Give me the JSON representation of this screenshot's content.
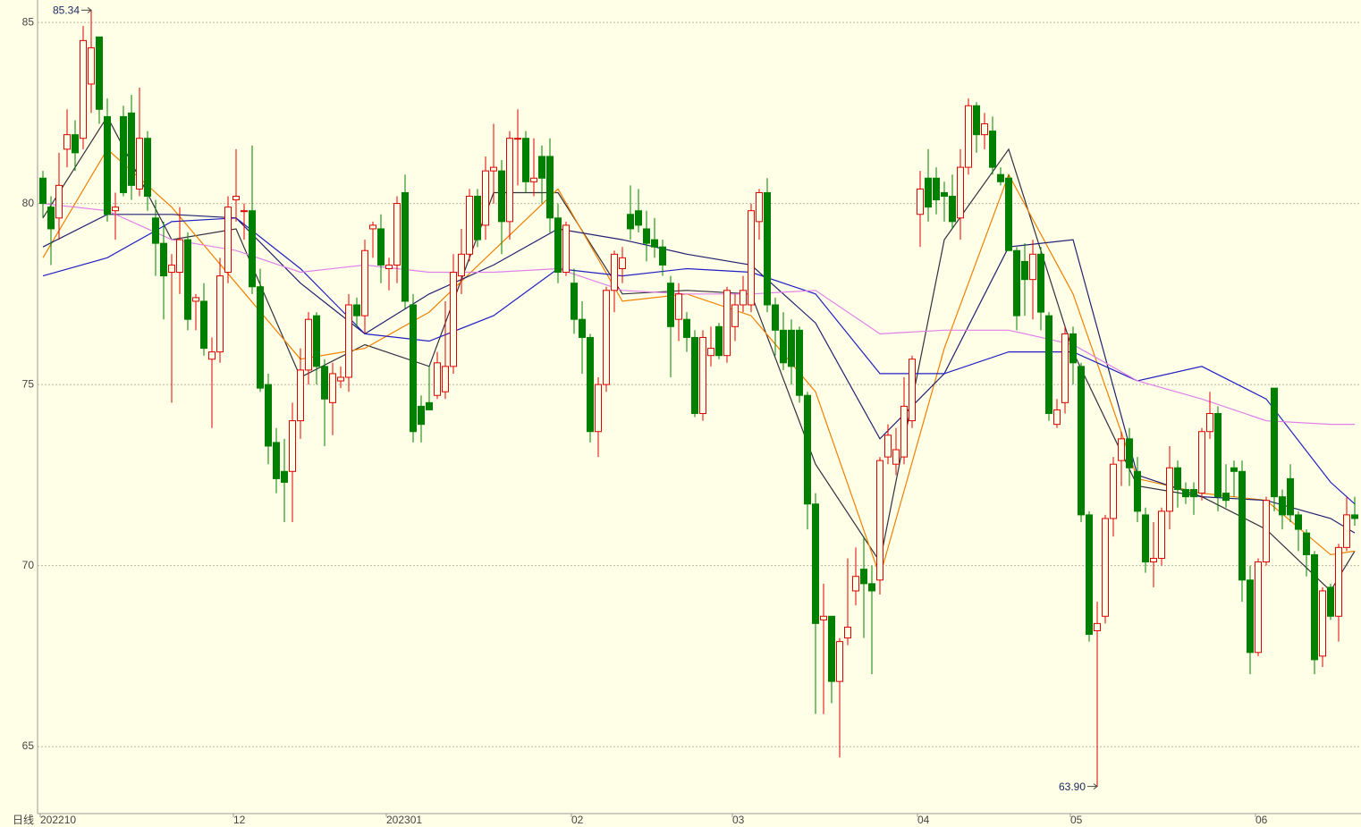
{
  "chart_data": {
    "type": "candlestick",
    "period_label": "日线",
    "ylim": [
      63.15,
      85.62
    ],
    "yticks": [
      65,
      70,
      75,
      80,
      85
    ],
    "grid": true,
    "xticks": [
      {
        "value": 0,
        "label": "202210"
      },
      {
        "value": 24,
        "label": "12"
      },
      {
        "value": 43,
        "label": "202301"
      },
      {
        "value": 66,
        "label": "02"
      },
      {
        "value": 86,
        "label": "03"
      },
      {
        "value": 109,
        "label": "04"
      },
      {
        "value": 128,
        "label": "05"
      },
      {
        "value": 151,
        "label": "06"
      }
    ],
    "up_color": "#e00000",
    "down_color": "#008000",
    "background": "#ffffe8",
    "max_label": "85.34",
    "min_label": "63.90",
    "candles": [
      [
        80.7,
        80.9,
        79.6,
        80.0
      ],
      [
        79.9,
        80.2,
        78.3,
        79.3
      ],
      [
        79.6,
        81.4,
        79.0,
        80.5
      ],
      [
        81.5,
        82.6,
        81.0,
        81.9
      ],
      [
        81.9,
        82.3,
        80.9,
        81.4
      ],
      [
        81.8,
        84.9,
        81.5,
        84.5
      ],
      [
        83.3,
        85.34,
        82.5,
        84.3
      ],
      [
        84.6,
        84.6,
        82.2,
        82.6
      ],
      [
        82.4,
        82.9,
        79.5,
        79.7
      ],
      [
        79.8,
        80.3,
        79.0,
        79.9
      ],
      [
        82.4,
        82.7,
        80.2,
        80.3
      ],
      [
        82.5,
        83.0,
        80.1,
        80.5
      ],
      [
        80.4,
        83.2,
        80.2,
        81.8
      ],
      [
        81.8,
        82.0,
        79.8,
        80.2
      ],
      [
        79.6,
        80.1,
        78.0,
        78.9
      ],
      [
        78.9,
        79.5,
        76.8,
        78.0
      ],
      [
        78.1,
        78.6,
        74.5,
        78.3
      ],
      [
        78.1,
        79.9,
        77.5,
        79.0
      ],
      [
        79.0,
        79.2,
        76.5,
        76.8
      ],
      [
        77.3,
        77.5,
        76.5,
        77.4
      ],
      [
        77.3,
        77.8,
        75.8,
        76.0
      ],
      [
        75.7,
        76.3,
        73.8,
        75.9
      ],
      [
        75.9,
        78.5,
        75.6,
        78.0
      ],
      [
        78.1,
        80.2,
        77.8,
        79.9
      ],
      [
        80.1,
        81.5,
        79.5,
        80.2
      ],
      [
        79.8,
        80.0,
        79.0,
        79.8
      ],
      [
        79.8,
        81.6,
        77.5,
        77.7
      ],
      [
        77.7,
        78.2,
        74.8,
        74.9
      ],
      [
        75.0,
        75.3,
        72.8,
        73.3
      ],
      [
        73.4,
        73.8,
        72.0,
        72.4
      ],
      [
        72.6,
        73.5,
        71.2,
        72.3
      ],
      [
        72.6,
        74.5,
        71.2,
        74.0
      ],
      [
        74.0,
        76.0,
        73.5,
        75.4
      ],
      [
        75.4,
        77.0,
        75.0,
        76.8
      ],
      [
        76.9,
        77.0,
        75.0,
        75.5
      ],
      [
        75.5,
        75.7,
        73.3,
        74.6
      ],
      [
        74.5,
        75.6,
        73.6,
        75.3
      ],
      [
        75.1,
        75.5,
        74.9,
        75.2
      ],
      [
        75.2,
        77.5,
        74.8,
        77.2
      ],
      [
        77.2,
        77.4,
        76.6,
        76.9
      ],
      [
        76.9,
        79.0,
        76.4,
        78.7
      ],
      [
        79.3,
        79.5,
        78.5,
        79.4
      ],
      [
        79.3,
        79.7,
        77.8,
        78.3
      ],
      [
        78.2,
        78.5,
        77.6,
        78.3
      ],
      [
        78.3,
        80.2,
        77.8,
        80.0
      ],
      [
        80.3,
        80.8,
        77.1,
        77.3
      ],
      [
        77.2,
        77.5,
        73.4,
        73.7
      ],
      [
        74.4,
        74.7,
        73.4,
        73.9
      ],
      [
        74.5,
        75.5,
        74.3,
        74.3
      ],
      [
        74.7,
        75.9,
        74.6,
        75.6
      ],
      [
        74.8,
        77.3,
        74.6,
        75.5
      ],
      [
        75.5,
        78.6,
        75.3,
        78.1
      ],
      [
        78.0,
        79.3,
        77.5,
        78.6
      ],
      [
        78.6,
        80.4,
        78.4,
        80.2
      ],
      [
        80.2,
        80.4,
        78.8,
        79.0
      ],
      [
        79.4,
        81.3,
        79.0,
        80.9
      ],
      [
        80.9,
        82.2,
        80.0,
        81.0
      ],
      [
        80.9,
        81.2,
        78.6,
        79.5
      ],
      [
        79.5,
        82.0,
        79.0,
        81.8
      ],
      [
        81.8,
        82.6,
        80.5,
        81.8
      ],
      [
        81.8,
        82.0,
        80.3,
        80.6
      ],
      [
        80.6,
        81.8,
        80.2,
        80.7
      ],
      [
        81.3,
        81.6,
        80.0,
        80.7
      ],
      [
        81.3,
        81.8,
        79.2,
        79.6
      ],
      [
        79.6,
        80.0,
        77.8,
        78.1
      ],
      [
        78.1,
        79.5,
        78.0,
        79.4
      ],
      [
        77.8,
        78.2,
        76.4,
        76.8
      ],
      [
        76.8,
        77.3,
        75.3,
        76.3
      ],
      [
        76.3,
        76.4,
        73.4,
        73.7
      ],
      [
        73.7,
        75.2,
        73.0,
        75.0
      ],
      [
        75.0,
        77.7,
        74.8,
        77.6
      ],
      [
        77.6,
        78.7,
        77.0,
        78.6
      ],
      [
        78.2,
        78.8,
        77.8,
        78.5
      ],
      [
        79.7,
        80.5,
        79.0,
        79.3
      ],
      [
        79.8,
        80.4,
        79.2,
        79.4
      ],
      [
        79.3,
        79.8,
        78.4,
        78.9
      ],
      [
        79.0,
        79.6,
        78.5,
        78.8
      ],
      [
        78.8,
        79.0,
        78.0,
        78.3
      ],
      [
        77.8,
        78.0,
        75.2,
        76.6
      ],
      [
        76.8,
        77.8,
        76.2,
        77.5
      ],
      [
        76.8,
        77.0,
        75.9,
        76.3
      ],
      [
        76.3,
        76.5,
        74.1,
        74.2
      ],
      [
        74.2,
        76.5,
        74.0,
        76.3
      ],
      [
        75.8,
        76.6,
        75.5,
        76.0
      ],
      [
        76.6,
        76.7,
        75.7,
        75.8
      ],
      [
        75.8,
        77.7,
        75.6,
        77.6
      ],
      [
        76.6,
        77.5,
        76.2,
        77.2
      ],
      [
        77.2,
        78.0,
        77.0,
        77.6
      ],
      [
        77.2,
        80.0,
        77.0,
        79.8
      ],
      [
        79.5,
        80.4,
        79.0,
        80.3
      ],
      [
        80.3,
        80.7,
        77.0,
        77.2
      ],
      [
        77.2,
        77.4,
        75.8,
        76.5
      ],
      [
        76.5,
        77.0,
        75.4,
        75.6
      ],
      [
        76.5,
        76.8,
        75.0,
        75.5
      ],
      [
        76.5,
        76.6,
        74.5,
        74.7
      ],
      [
        74.7,
        74.8,
        71.0,
        71.7
      ],
      [
        71.7,
        72.0,
        65.9,
        68.4
      ],
      [
        68.5,
        69.5,
        65.9,
        68.6
      ],
      [
        68.6,
        68.6,
        66.2,
        66.8
      ],
      [
        66.8,
        68.0,
        64.7,
        67.9
      ],
      [
        68.0,
        70.2,
        67.8,
        68.3
      ],
      [
        69.3,
        70.5,
        68.9,
        69.7
      ],
      [
        69.9,
        70.8,
        68.0,
        69.5
      ],
      [
        69.5,
        70.0,
        67.0,
        69.3
      ],
      [
        69.6,
        73.0,
        69.2,
        72.9
      ],
      [
        73.0,
        73.9,
        72.8,
        73.6
      ],
      [
        72.8,
        73.8,
        72.5,
        73.2
      ],
      [
        73.0,
        75.2,
        72.8,
        74.4
      ],
      [
        74.0,
        75.8,
        73.8,
        75.7
      ],
      [
        79.7,
        80.9,
        78.8,
        80.4
      ],
      [
        80.7,
        81.5,
        79.5,
        79.9
      ],
      [
        80.7,
        81.0,
        79.7,
        80.1
      ],
      [
        80.3,
        80.6,
        79.5,
        80.2
      ],
      [
        80.2,
        80.8,
        79.3,
        79.5
      ],
      [
        79.6,
        81.5,
        79.0,
        81.0
      ],
      [
        81.0,
        82.9,
        80.8,
        82.7
      ],
      [
        82.7,
        82.8,
        81.4,
        81.9
      ],
      [
        81.9,
        82.5,
        81.5,
        82.2
      ],
      [
        82.0,
        82.4,
        80.8,
        81.0
      ],
      [
        80.8,
        81.0,
        80.5,
        80.6
      ],
      [
        80.7,
        80.8,
        78.7,
        78.7
      ],
      [
        78.7,
        78.8,
        76.5,
        76.9
      ],
      [
        78.4,
        78.9,
        76.9,
        77.9
      ],
      [
        77.9,
        79.0,
        76.8,
        78.6
      ],
      [
        78.6,
        78.8,
        76.5,
        77.0
      ],
      [
        76.9,
        77.0,
        74.0,
        74.2
      ],
      [
        73.9,
        74.6,
        73.8,
        74.3
      ],
      [
        74.5,
        76.6,
        74.2,
        76.4
      ],
      [
        76.4,
        76.6,
        75.0,
        75.6
      ],
      [
        75.5,
        75.6,
        71.2,
        71.4
      ],
      [
        71.4,
        71.5,
        67.9,
        68.1
      ],
      [
        68.2,
        69.0,
        63.9,
        68.4
      ],
      [
        68.6,
        71.4,
        68.4,
        71.3
      ],
      [
        71.3,
        73.0,
        70.8,
        72.8
      ],
      [
        72.9,
        73.7,
        72.2,
        73.5
      ],
      [
        73.5,
        73.8,
        72.2,
        72.7
      ],
      [
        72.6,
        73.0,
        71.2,
        71.5
      ],
      [
        71.4,
        71.6,
        69.8,
        70.1
      ],
      [
        70.1,
        71.2,
        69.4,
        70.2
      ],
      [
        70.2,
        71.6,
        70.0,
        71.5
      ],
      [
        71.5,
        73.3,
        71.0,
        72.7
      ],
      [
        72.7,
        72.9,
        71.6,
        72.1
      ],
      [
        72.1,
        72.3,
        71.7,
        71.9
      ],
      [
        72.1,
        72.3,
        71.4,
        71.9
      ],
      [
        72.0,
        73.8,
        71.8,
        73.7
      ],
      [
        73.7,
        74.8,
        73.5,
        74.2
      ],
      [
        74.2,
        74.4,
        71.5,
        71.9
      ],
      [
        72.0,
        72.8,
        71.6,
        71.8
      ],
      [
        72.7,
        72.9,
        71.9,
        72.6
      ],
      [
        72.6,
        72.9,
        69.0,
        69.6
      ],
      [
        69.6,
        70.0,
        67.0,
        67.6
      ],
      [
        67.6,
        70.2,
        67.5,
        70.1
      ],
      [
        70.1,
        71.9,
        70.0,
        71.8
      ],
      [
        74.9,
        74.9,
        71.5,
        71.9
      ],
      [
        71.9,
        72.1,
        71.0,
        71.4
      ],
      [
        72.4,
        72.8,
        71.2,
        71.4
      ],
      [
        71.4,
        71.5,
        70.4,
        71.0
      ],
      [
        70.9,
        71.0,
        69.7,
        70.3
      ],
      [
        70.3,
        70.4,
        67.0,
        67.4
      ],
      [
        67.5,
        69.4,
        67.2,
        69.3
      ],
      [
        69.4,
        69.5,
        68.5,
        68.6
      ],
      [
        68.6,
        70.6,
        67.9,
        70.5
      ],
      [
        70.5,
        71.9,
        70.4,
        71.4
      ],
      [
        71.4,
        71.9,
        71.1,
        71.3
      ]
    ],
    "ma_index": [
      0,
      8,
      16,
      24,
      32,
      40,
      48,
      56,
      64,
      72,
      80,
      88,
      96,
      104,
      112,
      120,
      128,
      136,
      144,
      152,
      160,
      163
    ],
    "ma_series": [
      {
        "color": "#303040",
        "values": [
          79.6,
          82.4,
          79.0,
          79.3,
          75.2,
          76.1,
          75.5,
          80.3,
          80.3,
          77.5,
          77.6,
          77.5,
          72.8,
          70.1,
          79.0,
          81.5,
          75.9,
          72.2,
          71.9,
          71.0,
          69.3,
          70.4
        ]
      },
      {
        "color": "#f08000",
        "values": [
          78.5,
          81.5,
          79.9,
          77.8,
          75.7,
          76.0,
          77.0,
          78.7,
          80.4,
          77.3,
          77.5,
          76.9,
          74.8,
          69.7,
          76.0,
          80.8,
          77.5,
          72.4,
          72.0,
          71.8,
          70.3,
          70.4
        ]
      },
      {
        "color": "#202070",
        "values": [
          78.8,
          79.7,
          79.7,
          79.6,
          77.8,
          76.4,
          77.5,
          78.3,
          79.3,
          79.0,
          78.6,
          78.3,
          76.7,
          73.5,
          75.3,
          78.8,
          79.0,
          72.5,
          71.9,
          71.8,
          71.3,
          70.9
        ]
      },
      {
        "color": "#2020c0",
        "values": [
          78.0,
          78.5,
          79.5,
          79.6,
          78.2,
          76.4,
          76.2,
          76.9,
          78.2,
          78.0,
          78.2,
          78.1,
          77.5,
          75.3,
          75.3,
          75.9,
          75.9,
          75.1,
          75.5,
          74.6,
          72.3,
          71.7
        ]
      },
      {
        "color": "#e080e8",
        "values": [
          80.0,
          79.8,
          79.0,
          78.7,
          78.1,
          78.3,
          78.1,
          78.1,
          78.2,
          77.6,
          77.5,
          77.5,
          77.6,
          76.4,
          76.5,
          76.5,
          76.1,
          75.1,
          74.6,
          74.0,
          73.9,
          73.9
        ]
      }
    ]
  }
}
